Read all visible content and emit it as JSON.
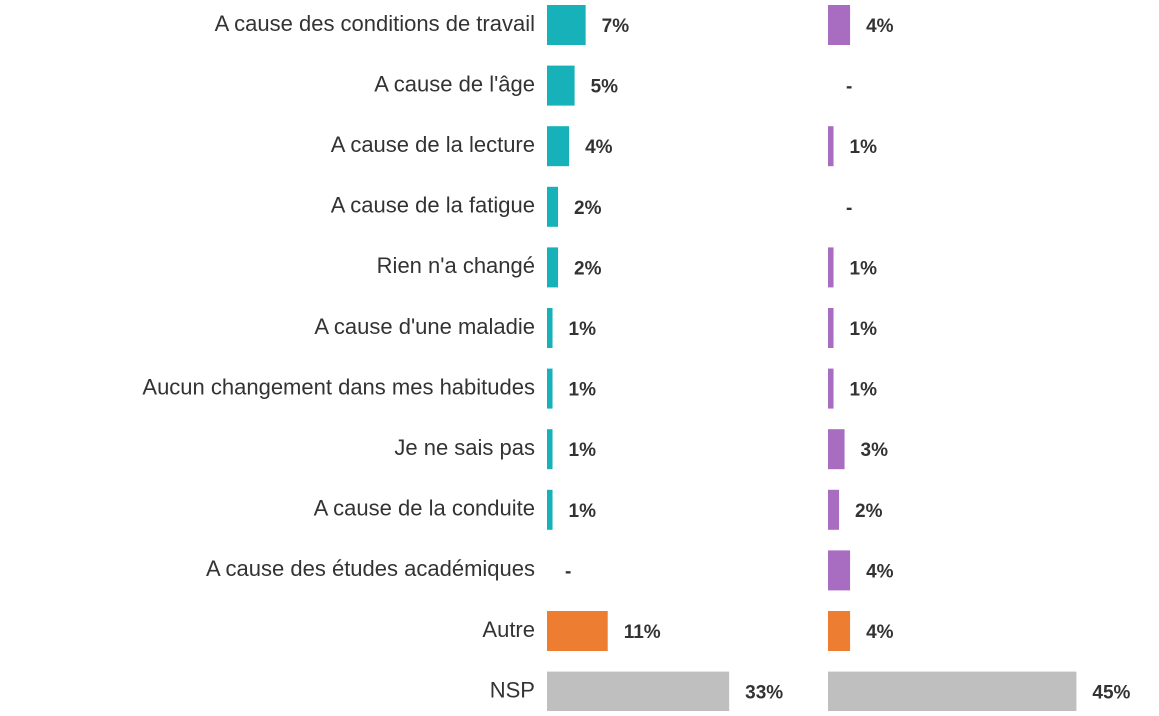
{
  "chart_data": {
    "type": "bar",
    "orientation": "horizontal",
    "categories": [
      "A cause des conditions de travail",
      "A cause de l'âge",
      "A cause de la lecture",
      "A cause de la fatigue",
      "Rien n'a changé",
      "A cause d'une maladie",
      "Aucun changement dans mes habitudes",
      "Je ne sais pas",
      "A cause de la conduite",
      "A cause des études académiques",
      "Autre",
      "NSP"
    ],
    "series": [
      {
        "color": "#17b1b9",
        "colors": [
          "#17b1b9",
          "#17b1b9",
          "#17b1b9",
          "#17b1b9",
          "#17b1b9",
          "#17b1b9",
          "#17b1b9",
          "#17b1b9",
          "#17b1b9",
          "#17b1b9",
          "#ed7d31",
          "#bfbfbf"
        ],
        "values": [
          7,
          5,
          4,
          2,
          2,
          1,
          1,
          1,
          1,
          null,
          11,
          33
        ],
        "value_labels": [
          "7%",
          "5%",
          "4%",
          "2%",
          "2%",
          "1%",
          "1%",
          "1%",
          "1%",
          "-",
          "11%",
          "33%"
        ]
      },
      {
        "color": "#a86cc1",
        "colors": [
          "#a86cc1",
          "#a86cc1",
          "#a86cc1",
          "#a86cc1",
          "#a86cc1",
          "#a86cc1",
          "#a86cc1",
          "#a86cc1",
          "#a86cc1",
          "#a86cc1",
          "#ed7d31",
          "#bfbfbf"
        ],
        "values": [
          4,
          null,
          1,
          null,
          1,
          1,
          1,
          3,
          2,
          4,
          4,
          45
        ],
        "value_labels": [
          "4%",
          "-",
          "1%",
          "-",
          "1%",
          "1%",
          "1%",
          "3%",
          "2%",
          "4%",
          "4%",
          "45%"
        ]
      }
    ]
  }
}
